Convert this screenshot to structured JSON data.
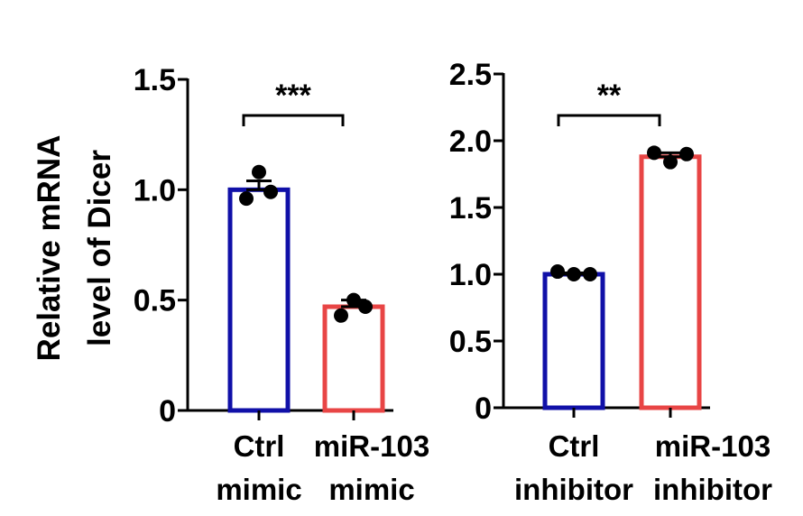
{
  "y_axis_label_line1": "Relative mRNA",
  "y_axis_label_line2": "level of Dicer",
  "chart_data": [
    {
      "type": "bar",
      "title": "",
      "ylabel": "Relative mRNA level of Dicer",
      "ylim": [
        0,
        1.5
      ],
      "yticks": [
        0,
        0.5,
        1.0,
        1.5
      ],
      "ytick_labels": [
        "0",
        "0.5",
        "1.0",
        "1.5"
      ],
      "categories": [
        [
          "Ctrl",
          "mimic"
        ],
        [
          "miR-103",
          "mimic"
        ]
      ],
      "values": [
        1.0,
        0.47
      ],
      "errors": [
        0.04,
        0.03
      ],
      "points": [
        [
          1.08,
          0.99,
          0.96
        ],
        [
          0.5,
          0.47,
          0.43
        ]
      ],
      "bar_colors": [
        "#1010A8",
        "#E84545"
      ],
      "significance": "***"
    },
    {
      "type": "bar",
      "title": "",
      "ylabel": "",
      "ylim": [
        0,
        2.5
      ],
      "yticks": [
        0,
        0.5,
        1.0,
        1.5,
        2.0,
        2.5
      ],
      "ytick_labels": [
        "0",
        "0.5",
        "1.0",
        "1.5",
        "2.0",
        "2.5"
      ],
      "categories": [
        [
          "Ctrl",
          "inhibitor"
        ],
        [
          "miR-103",
          "inhibitor"
        ]
      ],
      "values": [
        1.0,
        1.88
      ],
      "errors": [
        0.01,
        0.03
      ],
      "points": [
        [
          1.02,
          1.0,
          1.0
        ],
        [
          1.91,
          1.84,
          1.9
        ]
      ],
      "bar_colors": [
        "#1010A8",
        "#E84545"
      ],
      "significance": "**"
    }
  ]
}
